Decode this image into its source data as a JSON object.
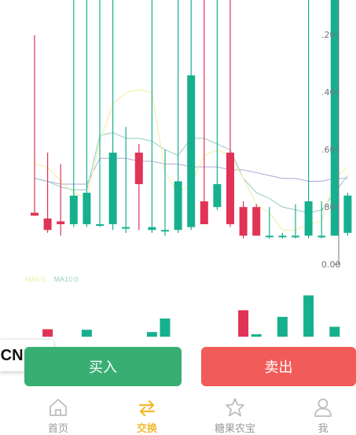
{
  "chart_data": {
    "type": "candlestick",
    "y_ticks": [
      "0.00",
      ".80",
      ".60",
      ".40",
      ".20"
    ],
    "legend": [
      {
        "name": "MA5:0",
        "color": "#f0f0a6"
      },
      {
        "name": "MA10:0",
        "color": "#9dd0c6"
      }
    ],
    "colors": {
      "up": "#17b08f",
      "down": "#e03356",
      "ma5": "#f0f0a6",
      "ma10": "#9dd0c6",
      "ma30": "#b5b0dd"
    },
    "candles": [
      {
        "open": 0.18,
        "close": 0.17,
        "high": 0.8,
        "low": 0.17
      },
      {
        "open": 0.16,
        "close": 0.12,
        "high": 0.39,
        "low": 0.11
      },
      {
        "open": 0.15,
        "close": 0.14,
        "high": 0.35,
        "low": 0.1
      },
      {
        "open": 0.14,
        "close": 0.24,
        "high": 1.2,
        "low": 0.13
      },
      {
        "open": 0.14,
        "close": 0.25,
        "high": 1.2,
        "low": 0.13
      },
      {
        "open": 0.14,
        "close": 0.14,
        "high": 1.0,
        "low": 0.13
      },
      {
        "open": 0.14,
        "close": 0.39,
        "high": 1.2,
        "low": 0.12
      },
      {
        "open": 0.13,
        "close": 0.13,
        "high": 0.48,
        "low": 0.11
      },
      {
        "open": 0.39,
        "close": 0.28,
        "high": 0.42,
        "low": 0.12
      },
      {
        "open": 0.12,
        "close": 0.13,
        "high": 1.2,
        "low": 0.11
      },
      {
        "open": 0.12,
        "close": 0.12,
        "high": 0.4,
        "low": 0.1
      },
      {
        "open": 0.12,
        "close": 0.29,
        "high": 1.2,
        "low": 0.11
      },
      {
        "open": 0.13,
        "close": 0.66,
        "high": 1.2,
        "low": 0.12
      },
      {
        "open": 0.22,
        "close": 0.14,
        "high": 1.2,
        "low": 0.14
      },
      {
        "open": 0.2,
        "close": 0.28,
        "high": 1.2,
        "low": 0.19
      },
      {
        "open": 0.39,
        "close": 0.14,
        "high": 1.2,
        "low": 0.13
      },
      {
        "open": 0.2,
        "close": 0.1,
        "high": 0.22,
        "low": 0.09
      },
      {
        "open": 0.2,
        "close": 0.1,
        "high": 0.21,
        "low": 0.1
      },
      {
        "open": 0.1,
        "close": 0.1,
        "high": 0.2,
        "low": 0.09
      },
      {
        "open": 0.1,
        "close": 0.1,
        "high": 0.11,
        "low": 0.09
      },
      {
        "open": 0.1,
        "close": 0.1,
        "high": 0.21,
        "low": 0.09
      },
      {
        "open": 0.1,
        "close": 0.22,
        "high": 1.2,
        "low": 0.09
      },
      {
        "open": 0.1,
        "close": 0.1,
        "high": 0.22,
        "low": 0.09
      },
      {
        "open": 0.1,
        "close": 1.2,
        "high": 1.2,
        "low": 0.1
      },
      {
        "open": 0.11,
        "close": 0.24,
        "high": 0.25,
        "low": 0.1
      }
    ],
    "ma5": [
      0.35,
      0.34,
      0.29,
      0.25,
      0.23,
      0.43,
      0.56,
      0.6,
      0.61,
      0.6,
      0.32,
      0.25,
      0.28,
      0.38,
      0.4,
      0.38,
      0.3,
      0.21,
      0.18,
      0.12,
      0.12,
      0.14,
      0.15,
      0.3,
      0.34
    ],
    "ma10": [
      0.3,
      0.29,
      0.27,
      0.26,
      0.26,
      0.45,
      0.46,
      0.44,
      0.44,
      0.43,
      0.4,
      0.38,
      0.44,
      0.44,
      0.42,
      0.4,
      0.3,
      0.25,
      0.23,
      0.2,
      0.19,
      0.18,
      0.19,
      0.25,
      0.31
    ],
    "ma30": [
      0.3,
      0.29,
      0.28,
      0.28,
      0.28,
      0.37,
      0.37,
      0.37,
      0.36,
      0.36,
      0.35,
      0.35,
      0.34,
      0.34,
      0.34,
      0.33,
      0.33,
      0.32,
      0.31,
      0.3,
      0.3,
      0.29,
      0.29,
      0.3,
      0.3
    ],
    "volume": [
      {
        "value": 0.0,
        "dir": "up"
      },
      {
        "value": 0.45,
        "dir": "down"
      },
      {
        "value": 0.0,
        "dir": "down"
      },
      {
        "value": 0.0,
        "dir": "up"
      },
      {
        "value": 0.42,
        "dir": "up"
      },
      {
        "value": 0.0,
        "dir": "up"
      },
      {
        "value": 0.0,
        "dir": "up"
      },
      {
        "value": 0.0,
        "dir": "down"
      },
      {
        "value": 0.0,
        "dir": "down"
      },
      {
        "value": 0.28,
        "dir": "up"
      },
      {
        "value": 1.1,
        "dir": "up"
      },
      {
        "value": 0.0,
        "dir": "up"
      },
      {
        "value": 0.0,
        "dir": "up"
      },
      {
        "value": 0.0,
        "dir": "down"
      },
      {
        "value": 0.0,
        "dir": "up"
      },
      {
        "value": 0.0,
        "dir": "down"
      },
      {
        "value": 1.6,
        "dir": "down"
      },
      {
        "value": 0.15,
        "dir": "up"
      },
      {
        "value": 0.0,
        "dir": "up"
      },
      {
        "value": 1.2,
        "dir": "up"
      },
      {
        "value": 0.0,
        "dir": "up"
      },
      {
        "value": 2.5,
        "dir": "up"
      },
      {
        "value": 0.0,
        "dir": "up"
      },
      {
        "value": 0.6,
        "dir": "up"
      },
      {
        "value": 0.0,
        "dir": "up"
      }
    ]
  },
  "language_chip": {
    "label": "-CN",
    "chevron": "^"
  },
  "actions": {
    "buy_label": "买入",
    "sell_label": "卖出"
  },
  "nav": {
    "tabs": [
      {
        "label": "首页",
        "icon": "home-icon",
        "active": false
      },
      {
        "label": "交换",
        "icon": "swap-icon",
        "active": true
      },
      {
        "label": "糖果农宝",
        "icon": "star-icon",
        "active": false
      },
      {
        "label": "我",
        "icon": "user-icon",
        "active": false
      }
    ]
  }
}
